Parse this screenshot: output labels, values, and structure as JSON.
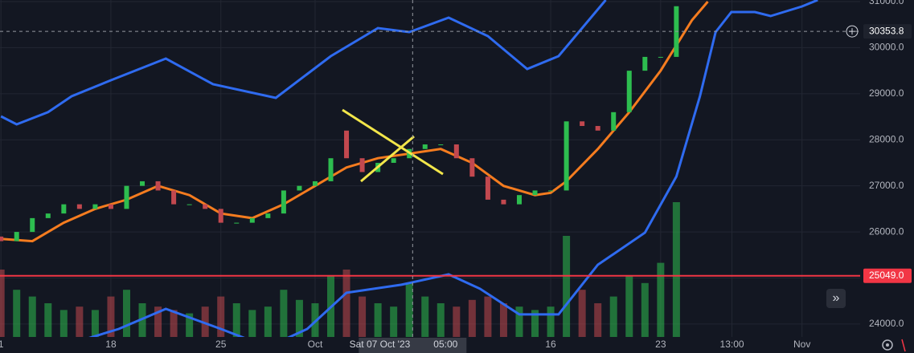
{
  "chart_data": {
    "type": "candlestick",
    "xlim": [
      -0.06,
      54.7
    ],
    "xticks": [
      {
        "value": 0,
        "label": "1"
      },
      {
        "value": 7,
        "label": "18"
      },
      {
        "value": 14,
        "label": "25"
      },
      {
        "value": 20,
        "label": "Oct"
      },
      {
        "value": 35,
        "label": "16"
      },
      {
        "value": 42,
        "label": "23"
      },
      {
        "value": 46.54,
        "label": "13:00"
      },
      {
        "value": 51,
        "label": "Nov"
      }
    ],
    "ylim": [
      23720,
      31035
    ],
    "yticks": [
      {
        "value": 24000,
        "label": "24000.0"
      },
      {
        "value": 25000,
        "label": "25000.0"
      },
      {
        "value": 26000,
        "label": "26000.0"
      },
      {
        "value": 27000,
        "label": "27000.0"
      },
      {
        "value": 28000,
        "label": "28000.0"
      },
      {
        "value": 29000,
        "label": "29000.0"
      },
      {
        "value": 30000,
        "label": "30000.0"
      },
      {
        "value": 31000,
        "label": "31000.0"
      }
    ],
    "y2lim": [
      0,
      100
    ],
    "grid": true,
    "candles": {
      "up_color": "#2dbd4f",
      "down_color": "#c2484f",
      "x": [
        0,
        1,
        2,
        3,
        4,
        5,
        6,
        7,
        8,
        9,
        10,
        11,
        12,
        13,
        14,
        15,
        16,
        17,
        18,
        19,
        20,
        21,
        22,
        23,
        24,
        25,
        26,
        27,
        28,
        29,
        30,
        31,
        32,
        33,
        34,
        35,
        36,
        37,
        38,
        39,
        40,
        41,
        42,
        43
      ],
      "open": [
        25900,
        25800,
        26000,
        26300,
        26400,
        26600,
        26500,
        26600,
        26500,
        27000,
        27100,
        26900,
        26600,
        26600,
        26500,
        26200,
        26200,
        26300,
        26400,
        26900,
        27000,
        27100,
        28200,
        27600,
        27300,
        27500,
        27600,
        27800,
        27900,
        27900,
        27600,
        27200,
        26700,
        26600,
        26800,
        26900,
        26900,
        28400,
        28300,
        28200,
        28600,
        29500,
        29800,
        29800
      ],
      "close": [
        25800,
        26000,
        26300,
        26400,
        26600,
        26500,
        26600,
        26500,
        27000,
        27100,
        26900,
        26600,
        26600,
        26500,
        26200,
        26200,
        26300,
        26400,
        26900,
        27000,
        27100,
        27600,
        27600,
        27300,
        27500,
        27600,
        27800,
        27900,
        27900,
        27600,
        27200,
        26700,
        26600,
        26800,
        26900,
        26900,
        28400,
        28300,
        28200,
        28600,
        29500,
        29800,
        29800,
        30900
      ]
    },
    "volume": {
      "axis": "y2",
      "values": [
        20,
        14,
        12,
        10,
        8,
        9,
        8,
        12,
        14,
        10,
        9,
        8,
        7,
        9,
        12,
        10,
        8,
        9,
        14,
        11,
        10,
        18,
        20,
        12,
        10,
        9,
        16,
        12,
        10,
        9,
        11,
        12,
        10,
        9,
        8,
        9,
        30,
        14,
        10,
        12,
        18,
        16,
        22,
        40
      ]
    },
    "bands": [
      {
        "color": "#2f6bf0",
        "x": [
          0,
          1,
          3,
          4.5,
          7,
          10.5,
          13.5,
          17.5,
          21,
          24,
          26,
          28.5,
          31,
          33.5,
          35.5,
          38.5
        ],
        "values": [
          28510,
          28335,
          28600,
          28945,
          29293,
          29764,
          29206,
          28910,
          29816,
          30425,
          30338,
          30652,
          30251,
          29537,
          29816,
          31035
        ]
      },
      {
        "color": "#f57c1f",
        "x": [
          0,
          2,
          4,
          6,
          8,
          10,
          12,
          14,
          16,
          18,
          20,
          22,
          24,
          26,
          28,
          30,
          32,
          34,
          35,
          36,
          38,
          40,
          42,
          44,
          45
        ],
        "values": [
          25850,
          25800,
          26200,
          26500,
          26700,
          27000,
          26800,
          26400,
          26300,
          26600,
          27000,
          27400,
          27600,
          27700,
          27800,
          27500,
          27000,
          26800,
          26850,
          27100,
          27800,
          28600,
          29500,
          30600,
          31000
        ]
      },
      {
        "color": "#2f6bf0",
        "x": [
          5,
          7.5,
          10.5,
          14,
          17,
          19.5,
          22,
          25.5,
          28.5,
          30.5,
          33,
          35.5,
          38,
          41,
          43,
          44.5,
          45.5,
          46.5,
          48,
          49,
          51,
          52
        ],
        "values": [
          23633,
          23895,
          24330,
          23895,
          23500,
          23895,
          24679,
          24853,
          25079,
          24766,
          24209,
          24209,
          25288,
          25985,
          27204,
          28945,
          30338,
          30774,
          30774,
          30687,
          30896,
          31035
        ]
      }
    ],
    "price_lines": [
      {
        "value": 30353.8,
        "label": "30353.8",
        "color": "#9598a1",
        "style": "dashed"
      },
      {
        "value": 25049,
        "label": "25049.0",
        "color": "#f23645",
        "style": "solid"
      }
    ],
    "crosshair": {
      "x": 26.21,
      "label": "Sat 07 Oct '23",
      "time_label": "05:00"
    }
  }
}
